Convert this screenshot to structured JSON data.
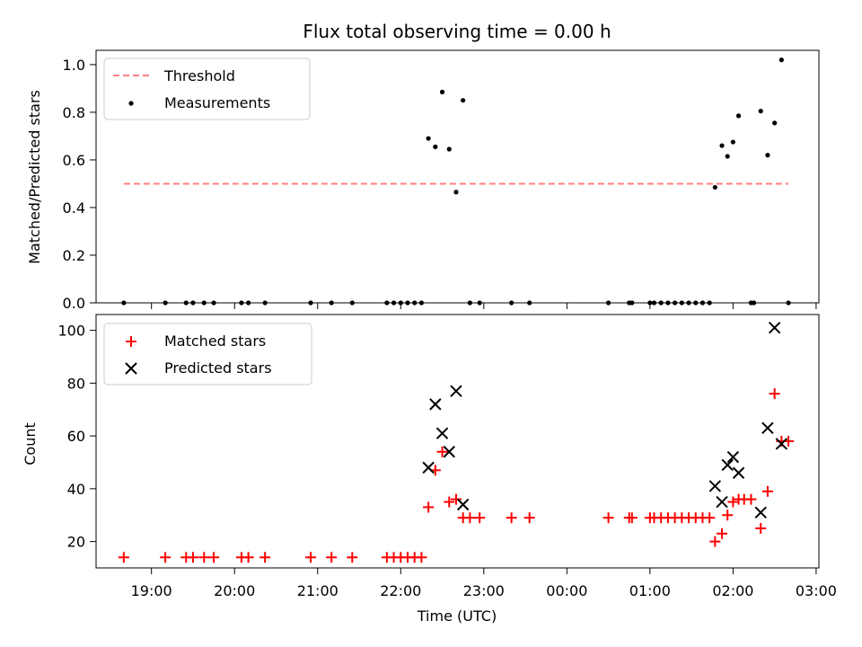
{
  "chart_data": [
    {
      "type": "scatter",
      "title": "Flux total observing time = 0.00 h",
      "xlabel": "",
      "ylabel": "Matched/Predicted stars",
      "ylim": [
        0,
        1.06
      ],
      "yticks": [
        0.0,
        0.2,
        0.4,
        0.6,
        0.8,
        1.0
      ],
      "ytick_labels": [
        "0.0",
        "0.2",
        "0.4",
        "0.6",
        "0.8",
        "1.0"
      ],
      "legend_position": "top-left",
      "grid": false,
      "threshold": {
        "name": "Threshold",
        "value": 0.5,
        "x_range": [
          "18:40",
          "02:40"
        ],
        "color": "#ff7f7f"
      },
      "series": [
        {
          "name": "Measurements",
          "color": "#000000",
          "marker": "dot",
          "points": [
            [
              "18:40",
              0.0
            ],
            [
              "19:10",
              0.0
            ],
            [
              "19:25",
              0.0
            ],
            [
              "19:30",
              0.0
            ],
            [
              "19:38",
              0.0
            ],
            [
              "19:45",
              0.0
            ],
            [
              "20:05",
              0.0
            ],
            [
              "20:10",
              0.0
            ],
            [
              "20:22",
              0.0
            ],
            [
              "20:55",
              0.0
            ],
            [
              "21:10",
              0.0
            ],
            [
              "21:25",
              0.0
            ],
            [
              "21:50",
              0.0
            ],
            [
              "21:55",
              0.0
            ],
            [
              "22:00",
              0.0
            ],
            [
              "22:05",
              0.0
            ],
            [
              "22:10",
              0.0
            ],
            [
              "22:15",
              0.0
            ],
            [
              "22:20",
              0.69
            ],
            [
              "22:25",
              0.655
            ],
            [
              "22:30",
              0.885
            ],
            [
              "22:35",
              0.645
            ],
            [
              "22:40",
              0.465
            ],
            [
              "22:45",
              0.85
            ],
            [
              "22:50",
              0.0
            ],
            [
              "22:57",
              0.0
            ],
            [
              "23:20",
              0.0
            ],
            [
              "23:33",
              0.0
            ],
            [
              "00:30",
              0.0
            ],
            [
              "00:45",
              0.0
            ],
            [
              "00:47",
              0.0
            ],
            [
              "01:00",
              0.0
            ],
            [
              "01:03",
              0.0
            ],
            [
              "01:08",
              0.0
            ],
            [
              "01:13",
              0.0
            ],
            [
              "01:18",
              0.0
            ],
            [
              "01:23",
              0.0
            ],
            [
              "01:28",
              0.0
            ],
            [
              "01:33",
              0.0
            ],
            [
              "01:38",
              0.0
            ],
            [
              "01:43",
              0.0
            ],
            [
              "01:47",
              0.485
            ],
            [
              "01:52",
              0.66
            ],
            [
              "01:56",
              0.615
            ],
            [
              "02:00",
              0.675
            ],
            [
              "02:04",
              0.785
            ],
            [
              "02:13",
              0.0
            ],
            [
              "02:15",
              0.0
            ],
            [
              "02:20",
              0.805
            ],
            [
              "02:25",
              0.62
            ],
            [
              "02:30",
              0.755
            ],
            [
              "02:35",
              1.02
            ],
            [
              "02:40",
              0.0
            ]
          ]
        }
      ]
    },
    {
      "type": "scatter",
      "title": "",
      "xlabel": "Time (UTC)",
      "ylabel": "Count",
      "ylim": [
        10,
        106
      ],
      "yticks": [
        20,
        40,
        60,
        80,
        100
      ],
      "ytick_labels": [
        "20",
        "40",
        "60",
        "80",
        "100"
      ],
      "xlim": [
        "18:20",
        "03:02"
      ],
      "xticks": [
        "19:00",
        "20:00",
        "21:00",
        "22:00",
        "23:00",
        "00:00",
        "01:00",
        "02:00",
        "03:00"
      ],
      "legend_position": "top-left",
      "grid": false,
      "series": [
        {
          "name": "Matched stars",
          "color": "#ff0000",
          "marker": "plus",
          "points": [
            [
              "18:40",
              14
            ],
            [
              "19:10",
              14
            ],
            [
              "19:25",
              14
            ],
            [
              "19:30",
              14
            ],
            [
              "19:38",
              14
            ],
            [
              "19:45",
              14
            ],
            [
              "20:05",
              14
            ],
            [
              "20:10",
              14
            ],
            [
              "20:22",
              14
            ],
            [
              "20:55",
              14
            ],
            [
              "21:10",
              14
            ],
            [
              "21:25",
              14
            ],
            [
              "21:50",
              14
            ],
            [
              "21:55",
              14
            ],
            [
              "22:00",
              14
            ],
            [
              "22:05",
              14
            ],
            [
              "22:10",
              14
            ],
            [
              "22:15",
              14
            ],
            [
              "22:20",
              33
            ],
            [
              "22:25",
              47
            ],
            [
              "22:30",
              54
            ],
            [
              "22:35",
              35
            ],
            [
              "22:40",
              36
            ],
            [
              "22:45",
              29
            ],
            [
              "22:50",
              29
            ],
            [
              "22:57",
              29
            ],
            [
              "23:20",
              29
            ],
            [
              "23:33",
              29
            ],
            [
              "00:30",
              29
            ],
            [
              "00:45",
              29
            ],
            [
              "00:47",
              29
            ],
            [
              "01:00",
              29
            ],
            [
              "01:03",
              29
            ],
            [
              "01:08",
              29
            ],
            [
              "01:13",
              29
            ],
            [
              "01:18",
              29
            ],
            [
              "01:23",
              29
            ],
            [
              "01:28",
              29
            ],
            [
              "01:33",
              29
            ],
            [
              "01:38",
              29
            ],
            [
              "01:43",
              29
            ],
            [
              "01:47",
              20
            ],
            [
              "01:52",
              23
            ],
            [
              "01:56",
              30
            ],
            [
              "02:00",
              35
            ],
            [
              "02:04",
              36
            ],
            [
              "02:08",
              36
            ],
            [
              "02:13",
              36
            ],
            [
              "02:20",
              25
            ],
            [
              "02:25",
              39
            ],
            [
              "02:30",
              76
            ],
            [
              "02:35",
              58
            ],
            [
              "02:40",
              58
            ]
          ]
        },
        {
          "name": "Predicted stars",
          "color": "#000000",
          "marker": "x",
          "points": [
            [
              "22:20",
              48
            ],
            [
              "22:25",
              72
            ],
            [
              "22:30",
              61
            ],
            [
              "22:35",
              54
            ],
            [
              "22:40",
              77
            ],
            [
              "22:45",
              34
            ],
            [
              "01:47",
              41
            ],
            [
              "01:52",
              35
            ],
            [
              "01:56",
              49
            ],
            [
              "02:00",
              52
            ],
            [
              "02:04",
              46
            ],
            [
              "02:20",
              31
            ],
            [
              "02:25",
              63
            ],
            [
              "02:30",
              101
            ],
            [
              "02:35",
              57
            ]
          ]
        }
      ]
    }
  ]
}
